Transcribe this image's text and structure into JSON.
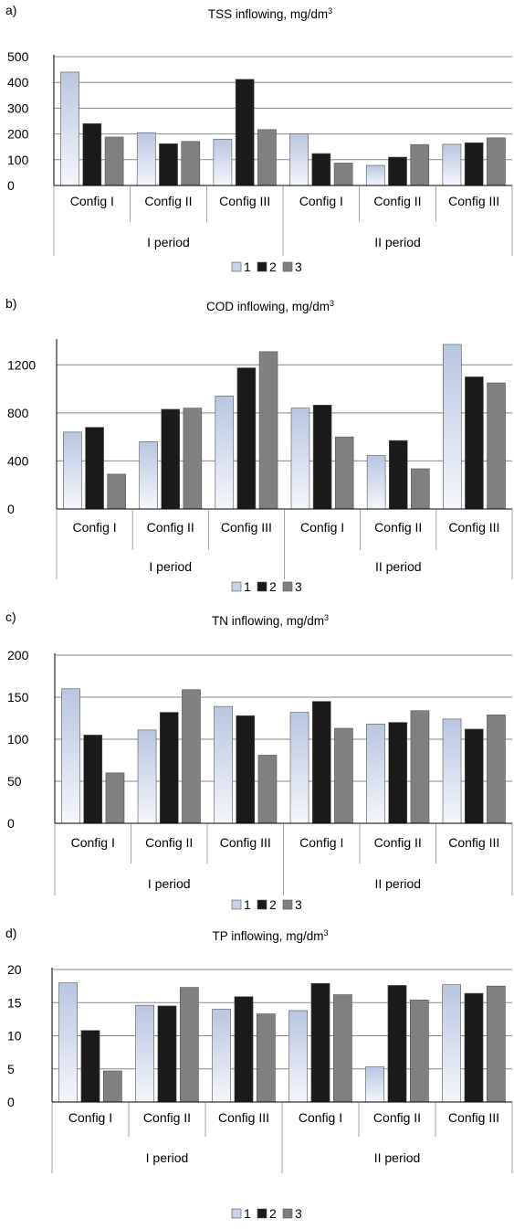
{
  "legend": [
    "1",
    "2",
    "3"
  ],
  "colors": {
    "s1": "#c9d3e6",
    "s2": "#1a1a1a",
    "s3": "#808080",
    "grid": "#888888",
    "axis": "#000000"
  },
  "chart_data": [
    {
      "type": "bar",
      "panel_label": "a)",
      "title": "TSS inflowing, mg/dm",
      "title_sup": "3",
      "categories": [
        "Config I",
        "Config II",
        "Config III",
        "Config I",
        "Config II",
        "Config III"
      ],
      "groups": [
        "I period",
        "II period"
      ],
      "ylim": [
        0,
        500
      ],
      "yticks": [
        0,
        100,
        200,
        300,
        400,
        500
      ],
      "series": [
        {
          "name": "1",
          "values": [
            440,
            205,
            180,
            200,
            78,
            160
          ]
        },
        {
          "name": "2",
          "values": [
            240,
            162,
            412,
            124,
            110,
            166
          ]
        },
        {
          "name": "3",
          "values": [
            188,
            171,
            217,
            87,
            159,
            185
          ]
        }
      ],
      "legend_position": "bottom"
    },
    {
      "type": "bar",
      "panel_label": "b)",
      "title": "COD inflowing, mg/dm",
      "title_sup": "3",
      "categories": [
        "Config I",
        "Config II",
        "Config III",
        "Config I",
        "Config II",
        "Config III"
      ],
      "groups": [
        "I period",
        "II period"
      ],
      "ylim": [
        0,
        1400
      ],
      "yticks": [
        0,
        400,
        800,
        1200
      ],
      "series": [
        {
          "name": "1",
          "values": [
            640,
            560,
            940,
            840,
            445,
            1370
          ]
        },
        {
          "name": "2",
          "values": [
            680,
            830,
            1175,
            865,
            570,
            1100
          ]
        },
        {
          "name": "3",
          "values": [
            290,
            840,
            1310,
            600,
            335,
            1050
          ]
        }
      ],
      "legend_position": "bottom"
    },
    {
      "type": "bar",
      "panel_label": "c)",
      "title": "TN inflowing, mg/dm",
      "title_sup": "3",
      "categories": [
        "Config I",
        "Config II",
        "Config III",
        "Config I",
        "Config II",
        "Config III"
      ],
      "groups": [
        "I period",
        "II period"
      ],
      "ylim": [
        0,
        200
      ],
      "yticks": [
        0,
        50,
        100,
        150,
        200
      ],
      "series": [
        {
          "name": "1",
          "values": [
            160,
            111,
            139,
            132,
            118,
            124
          ]
        },
        {
          "name": "2",
          "values": [
            105,
            132,
            128,
            145,
            120,
            112
          ]
        },
        {
          "name": "3",
          "values": [
            60,
            159,
            81,
            113,
            134,
            129
          ]
        }
      ],
      "legend_position": "bottom"
    },
    {
      "type": "bar",
      "panel_label": "d)",
      "title": "TP inflowing, mg/dm",
      "title_sup": "3",
      "categories": [
        "Config I",
        "Config II",
        "Config III",
        "Config I",
        "Config II",
        "Config III"
      ],
      "groups": [
        "I period",
        "II period"
      ],
      "ylim": [
        0,
        20
      ],
      "yticks": [
        0,
        5,
        10,
        15,
        20
      ],
      "series": [
        {
          "name": "1",
          "values": [
            18.0,
            14.6,
            14.0,
            13.8,
            5.3,
            17.7
          ]
        },
        {
          "name": "2",
          "values": [
            10.8,
            14.5,
            15.9,
            17.9,
            17.6,
            16.4
          ]
        },
        {
          "name": "3",
          "values": [
            4.7,
            17.3,
            13.3,
            16.2,
            15.4,
            17.5
          ]
        }
      ],
      "legend_position": "bottom"
    }
  ]
}
